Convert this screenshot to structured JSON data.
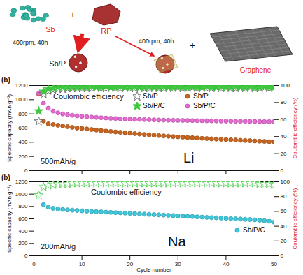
{
  "schematic": {
    "reactants": [
      "Sb",
      "RP"
    ],
    "additive": "Graphene",
    "operator": "+",
    "milling": [
      "400rpm, 40h",
      "400rpm, 40h"
    ],
    "product": "Sb/P"
  },
  "chart_data": [
    {
      "type": "scatter",
      "title": "(b)",
      "y_label": "Specific capacity (mAh g⁻¹)",
      "y2_label": "Coulombic efficiency (%)",
      "annotations": [
        "500mAh/g",
        "Li",
        "Coulombic efficiency"
      ],
      "xlim": [
        0,
        50
      ],
      "xticks": [
        0,
        10,
        20,
        30,
        40,
        50
      ],
      "ylim": [
        0,
        1200
      ],
      "yticks": [
        0,
        200,
        400,
        600,
        800,
        1000,
        1200
      ],
      "y2lim": [
        0,
        100
      ],
      "y2ticks": [
        0,
        20,
        40,
        60,
        80,
        100
      ],
      "tick_labels": "y",
      "legend": "top",
      "grid": false,
      "x": [
        1,
        2,
        3,
        4,
        5,
        6,
        7,
        8,
        9,
        10,
        11,
        12,
        13,
        14,
        15,
        16,
        17,
        18,
        19,
        20,
        21,
        22,
        23,
        24,
        25,
        26,
        27,
        28,
        29,
        30,
        31,
        32,
        33,
        34,
        35,
        36,
        37,
        38,
        39,
        40,
        41,
        42,
        43,
        44,
        45,
        46,
        47,
        48,
        49,
        50
      ],
      "series": [
        {
          "name": "Sb/P",
          "color": "#555555",
          "marker": "star-open",
          "axis": "y2",
          "values": [
            58,
            90,
            94,
            95,
            96,
            96,
            97,
            97,
            97,
            97,
            97,
            97,
            98,
            97,
            97,
            98,
            97,
            97,
            98,
            97,
            97,
            98,
            97,
            97,
            98,
            97,
            97,
            98,
            97,
            98,
            97,
            97,
            98,
            97,
            98,
            97,
            97,
            98,
            97,
            98,
            97,
            97,
            98,
            97,
            98,
            97,
            97,
            98,
            97,
            98
          ]
        },
        {
          "name": "Sb/P/C",
          "color": "#3cc83c",
          "marker": "star",
          "axis": "y2",
          "values": [
            70,
            93,
            96,
            97,
            98,
            98,
            98,
            98,
            98,
            98,
            98,
            99,
            98,
            98,
            99,
            98,
            98,
            99,
            98,
            98,
            99,
            98,
            98,
            99,
            98,
            98,
            99,
            98,
            98,
            99,
            98,
            98,
            99,
            98,
            98,
            99,
            98,
            98,
            99,
            98,
            98,
            99,
            98,
            98,
            99,
            98,
            98,
            99,
            98,
            98
          ]
        },
        {
          "name": "Sb/P",
          "color": "#c8641e",
          "marker": "circle",
          "values": [
            1080,
            700,
            660,
            650,
            640,
            630,
            620,
            610,
            600,
            595,
            588,
            580,
            572,
            565,
            558,
            552,
            545,
            540,
            534,
            528,
            522,
            516,
            510,
            505,
            500,
            495,
            490,
            485,
            480,
            476,
            472,
            468,
            464,
            460,
            456,
            452,
            448,
            445,
            442,
            438,
            435,
            432,
            428,
            425,
            422,
            418,
            415,
            412,
            408,
            405
          ]
        },
        {
          "name": "Sb/P/C",
          "color": "#e66ad2",
          "marker": "circle",
          "values": [
            1090,
            950,
            880,
            840,
            815,
            800,
            790,
            780,
            772,
            765,
            760,
            755,
            750,
            746,
            742,
            738,
            735,
            732,
            729,
            726,
            724,
            722,
            720,
            718,
            716,
            714,
            712,
            711,
            710,
            709,
            708,
            707,
            706,
            705,
            704,
            703,
            702,
            701,
            700,
            699,
            698,
            697,
            696,
            695,
            694,
            693,
            692,
            691,
            690,
            690
          ]
        }
      ]
    },
    {
      "type": "scatter",
      "title": "(b)",
      "x_label": "Cycle number",
      "y_label": "Specific capacity (mAh g⁻¹)",
      "y2_label": "Coulombic efficiency (%)",
      "annotations": [
        "200mAh/g",
        "Na",
        "Coulombic efficiency"
      ],
      "xlim": [
        0,
        50
      ],
      "xticks": [
        0,
        10,
        20,
        30,
        40,
        50
      ],
      "ylim": [
        0,
        1200
      ],
      "yticks": [
        0,
        200,
        400,
        600,
        800,
        1000,
        1200
      ],
      "y2lim": [
        0,
        100
      ],
      "y2ticks": [
        0,
        20,
        40,
        60,
        80,
        100
      ],
      "legend": "right",
      "grid": false,
      "x": [
        1,
        2,
        3,
        4,
        5,
        6,
        7,
        8,
        9,
        10,
        11,
        12,
        13,
        14,
        15,
        16,
        17,
        18,
        19,
        20,
        21,
        22,
        23,
        24,
        25,
        26,
        27,
        28,
        29,
        30,
        31,
        32,
        33,
        34,
        35,
        36,
        37,
        38,
        39,
        40,
        41,
        42,
        43,
        44,
        45,
        46,
        47,
        48,
        49,
        50
      ],
      "series": [
        {
          "name": "Sb/P/C",
          "color": "#3fc8dc",
          "marker": "circle",
          "values": [
            1000,
            830,
            790,
            770,
            760,
            752,
            745,
            740,
            735,
            730,
            725,
            720,
            716,
            712,
            708,
            704,
            700,
            696,
            692,
            688,
            684,
            680,
            676,
            672,
            668,
            664,
            660,
            656,
            652,
            648,
            644,
            640,
            636,
            632,
            628,
            624,
            620,
            616,
            612,
            608,
            604,
            600,
            596,
            592,
            588,
            584,
            578,
            570,
            560,
            545
          ]
        },
        {
          "color": "#4fcf4f",
          "marker": "star-open",
          "axis": "y2",
          "values": [
            82,
            93,
            95,
            96,
            97,
            97,
            97,
            98,
            98,
            98,
            98,
            98,
            98,
            98,
            98,
            98,
            98,
            98,
            98,
            98,
            98,
            98,
            98,
            98,
            98,
            98,
            98,
            98,
            98,
            98,
            98,
            98,
            98,
            98,
            98,
            98,
            98,
            98,
            98,
            98,
            98,
            98,
            98,
            98,
            98,
            98,
            97,
            97,
            97,
            96
          ]
        }
      ]
    }
  ]
}
